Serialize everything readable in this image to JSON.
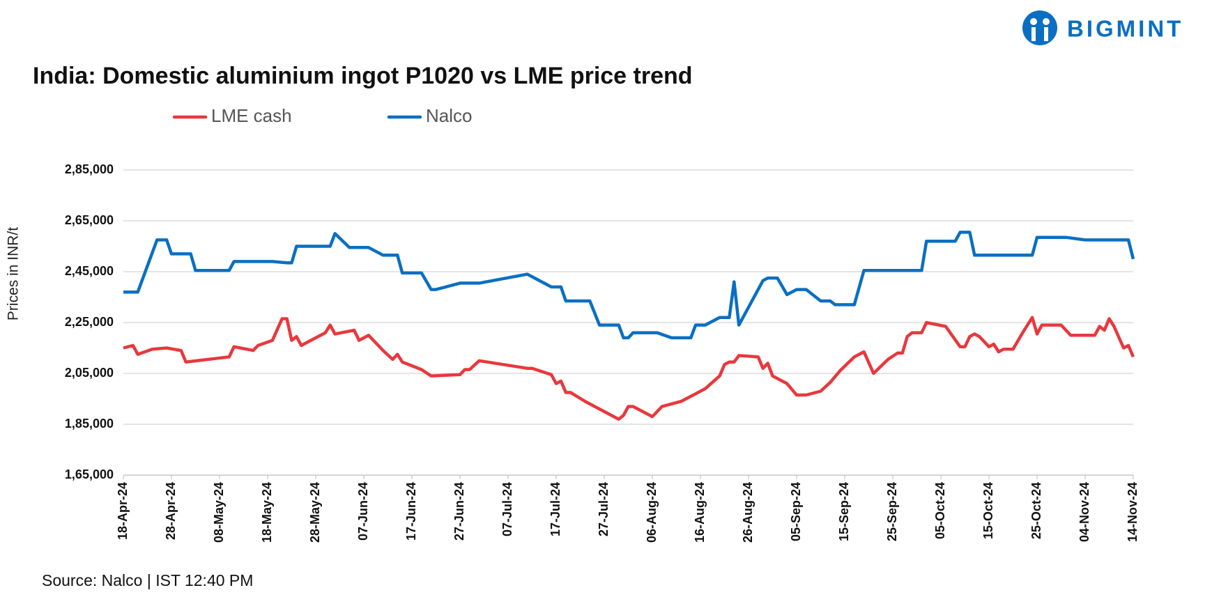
{
  "chart_data": {
    "type": "line",
    "title": "India: Domestic aluminium ingot P1020 vs LME price trend",
    "logo": "BIGMINT",
    "y_label": "Prices in INR/t",
    "source": "Source: Nalco | IST 12:40 PM",
    "grid": true,
    "legend": "top",
    "xlim": [
      "2024-04-18",
      "2024-11-14"
    ],
    "ylim": [
      165000,
      285000
    ],
    "yticks": [
      {
        "value": 165000,
        "label": "1,65,000"
      },
      {
        "value": 185000,
        "label": "1,85,000"
      },
      {
        "value": 205000,
        "label": "2,05,000"
      },
      {
        "value": 225000,
        "label": "2,25,000"
      },
      {
        "value": 245000,
        "label": "2,45,000"
      },
      {
        "value": 265000,
        "label": "2,65,000"
      },
      {
        "value": 285000,
        "label": "2,85,000"
      }
    ],
    "xticks": [
      {
        "value": "2024-04-18",
        "label": "18-Apr-24"
      },
      {
        "value": "2024-04-28",
        "label": "28-Apr-24"
      },
      {
        "value": "2024-05-08",
        "label": "08-May-24"
      },
      {
        "value": "2024-05-18",
        "label": "18-May-24"
      },
      {
        "value": "2024-05-28",
        "label": "28-May-24"
      },
      {
        "value": "2024-06-07",
        "label": "07-Jun-24"
      },
      {
        "value": "2024-06-17",
        "label": "17-Jun-24"
      },
      {
        "value": "2024-06-27",
        "label": "27-Jun-24"
      },
      {
        "value": "2024-07-07",
        "label": "07-Jul-24"
      },
      {
        "value": "2024-07-17",
        "label": "17-Jul-24"
      },
      {
        "value": "2024-07-27",
        "label": "27-Jul-24"
      },
      {
        "value": "2024-08-06",
        "label": "06-Aug-24"
      },
      {
        "value": "2024-08-16",
        "label": "16-Aug-24"
      },
      {
        "value": "2024-08-26",
        "label": "26-Aug-24"
      },
      {
        "value": "2024-09-05",
        "label": "05-Sep-24"
      },
      {
        "value": "2024-09-15",
        "label": "15-Sep-24"
      },
      {
        "value": "2024-09-25",
        "label": "25-Sep-24"
      },
      {
        "value": "2024-10-05",
        "label": "05-Oct-24"
      },
      {
        "value": "2024-10-15",
        "label": "15-Oct-24"
      },
      {
        "value": "2024-10-25",
        "label": "25-Oct-24"
      },
      {
        "value": "2024-11-04",
        "label": "04-Nov-24"
      },
      {
        "value": "2024-11-14",
        "label": "14-Nov-24"
      }
    ],
    "series": [
      {
        "name": "LME cash",
        "color": "#e8383d",
        "x": [
          "2024-04-18",
          "2024-04-20",
          "2024-04-21",
          "2024-04-24",
          "2024-04-27",
          "2024-04-30",
          "2024-05-01",
          "2024-05-10",
          "2024-05-11",
          "2024-05-15",
          "2024-05-16",
          "2024-05-19",
          "2024-05-21",
          "2024-05-22",
          "2024-05-23",
          "2024-05-24",
          "2024-05-25",
          "2024-05-30",
          "2024-05-31",
          "2024-06-01",
          "2024-06-05",
          "2024-06-06",
          "2024-06-08",
          "2024-06-11",
          "2024-06-13",
          "2024-06-14",
          "2024-06-15",
          "2024-06-19",
          "2024-06-21",
          "2024-06-27",
          "2024-06-28",
          "2024-06-29",
          "2024-07-01",
          "2024-07-11",
          "2024-07-12",
          "2024-07-16",
          "2024-07-17",
          "2024-07-18",
          "2024-07-19",
          "2024-07-20",
          "2024-07-23",
          "2024-07-30",
          "2024-07-31",
          "2024-08-01",
          "2024-08-02",
          "2024-08-06",
          "2024-08-08",
          "2024-08-12",
          "2024-08-15",
          "2024-08-17",
          "2024-08-20",
          "2024-08-21",
          "2024-08-22",
          "2024-08-23",
          "2024-08-24",
          "2024-08-28",
          "2024-08-29",
          "2024-08-30",
          "2024-08-31",
          "2024-09-03",
          "2024-09-05",
          "2024-09-07",
          "2024-09-10",
          "2024-09-12",
          "2024-09-14",
          "2024-09-17",
          "2024-09-19",
          "2024-09-21",
          "2024-09-24",
          "2024-09-26",
          "2024-09-27",
          "2024-09-28",
          "2024-09-29",
          "2024-10-01",
          "2024-10-02",
          "2024-10-06",
          "2024-10-09",
          "2024-10-10",
          "2024-10-11",
          "2024-10-12",
          "2024-10-13",
          "2024-10-15",
          "2024-10-16",
          "2024-10-17",
          "2024-10-18",
          "2024-10-20",
          "2024-10-22",
          "2024-10-24",
          "2024-10-25",
          "2024-10-26",
          "2024-10-30",
          "2024-11-01",
          "2024-11-06",
          "2024-11-07",
          "2024-11-08",
          "2024-11-09",
          "2024-11-10",
          "2024-11-12",
          "2024-11-13",
          "2024-11-14"
        ],
        "values": [
          215000,
          216000,
          212500,
          214500,
          215000,
          214000,
          209500,
          211500,
          215500,
          214000,
          216000,
          218000,
          226500,
          226500,
          218000,
          219500,
          216000,
          221000,
          224000,
          220500,
          222000,
          218000,
          220000,
          214000,
          210500,
          212500,
          209500,
          206500,
          204000,
          204500,
          206500,
          206500,
          210000,
          207000,
          207000,
          204500,
          201000,
          202000,
          197500,
          197500,
          194000,
          187000,
          188500,
          192000,
          192000,
          188000,
          192000,
          194000,
          197000,
          199000,
          204000,
          208500,
          209500,
          209500,
          212000,
          211500,
          207000,
          209000,
          204000,
          201000,
          196500,
          196500,
          198000,
          201500,
          206000,
          211500,
          213500,
          205000,
          210500,
          213000,
          213000,
          219500,
          221000,
          221000,
          225000,
          223500,
          215500,
          215500,
          219500,
          220500,
          219500,
          215500,
          216500,
          213500,
          214500,
          214500,
          221000,
          227000,
          220500,
          224000,
          224000,
          220000,
          220000,
          223500,
          222000,
          226500,
          223500,
          215000,
          216000,
          211500
        ]
      },
      {
        "name": "Nalco",
        "color": "#0a6fc2",
        "x": [
          "2024-04-18",
          "2024-04-21",
          "2024-04-25",
          "2024-04-27",
          "2024-04-28",
          "2024-05-02",
          "2024-05-03",
          "2024-05-10",
          "2024-05-11",
          "2024-05-19",
          "2024-05-22",
          "2024-05-23",
          "2024-05-24",
          "2024-05-31",
          "2024-06-01",
          "2024-06-04",
          "2024-06-08",
          "2024-06-11",
          "2024-06-14",
          "2024-06-15",
          "2024-06-19",
          "2024-06-21",
          "2024-06-22",
          "2024-06-27",
          "2024-07-01",
          "2024-07-11",
          "2024-07-16",
          "2024-07-18",
          "2024-07-19",
          "2024-07-24",
          "2024-07-26",
          "2024-07-30",
          "2024-07-31",
          "2024-08-01",
          "2024-08-02",
          "2024-08-07",
          "2024-08-10",
          "2024-08-14",
          "2024-08-15",
          "2024-08-17",
          "2024-08-20",
          "2024-08-22",
          "2024-08-23",
          "2024-08-24",
          "2024-08-29",
          "2024-08-30",
          "2024-09-01",
          "2024-09-03",
          "2024-09-05",
          "2024-09-07",
          "2024-09-10",
          "2024-09-12",
          "2024-09-13",
          "2024-09-17",
          "2024-09-19",
          "2024-10-01",
          "2024-10-02",
          "2024-10-08",
          "2024-10-09",
          "2024-10-11",
          "2024-10-12",
          "2024-10-24",
          "2024-10-25",
          "2024-10-31",
          "2024-11-04",
          "2024-11-13",
          "2024-11-14"
        ],
        "values": [
          237000,
          237000,
          257500,
          257500,
          252000,
          252000,
          245500,
          245500,
          249000,
          249000,
          248500,
          248500,
          255000,
          255000,
          260000,
          254500,
          254500,
          251500,
          251500,
          244500,
          244500,
          238000,
          238000,
          240500,
          240500,
          244000,
          239000,
          239000,
          233500,
          233500,
          224000,
          224000,
          219000,
          219000,
          221000,
          221000,
          219000,
          219000,
          224000,
          224000,
          227000,
          227000,
          241000,
          224000,
          241500,
          242500,
          242500,
          236000,
          238000,
          238000,
          233500,
          233500,
          232000,
          232000,
          245500,
          245500,
          257000,
          257000,
          260500,
          260500,
          251500,
          251500,
          258500,
          258500,
          257500,
          257500,
          250000
        ]
      }
    ]
  }
}
